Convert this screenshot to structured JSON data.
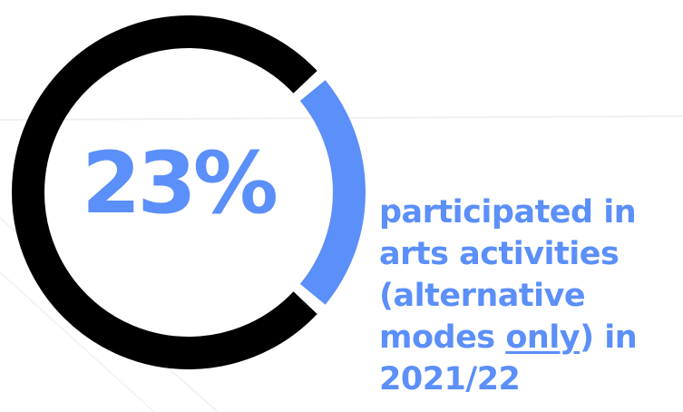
{
  "colors": {
    "accent": "#5b8ff9",
    "ring_remainder": "#000000",
    "background": "#ffffff",
    "deco_line": "#eeeeee"
  },
  "chart_data": {
    "type": "pie",
    "style": "donut",
    "values": [
      23,
      77
    ],
    "unit": "%",
    "label": "23%",
    "caption_lines": [
      [
        "participated in"
      ],
      [
        "arts activities"
      ],
      [
        "(alternative"
      ],
      [
        "modes ",
        "only",
        ") in"
      ],
      [
        "2021/22"
      ]
    ],
    "caption_underlined": "only",
    "legend": "none"
  }
}
